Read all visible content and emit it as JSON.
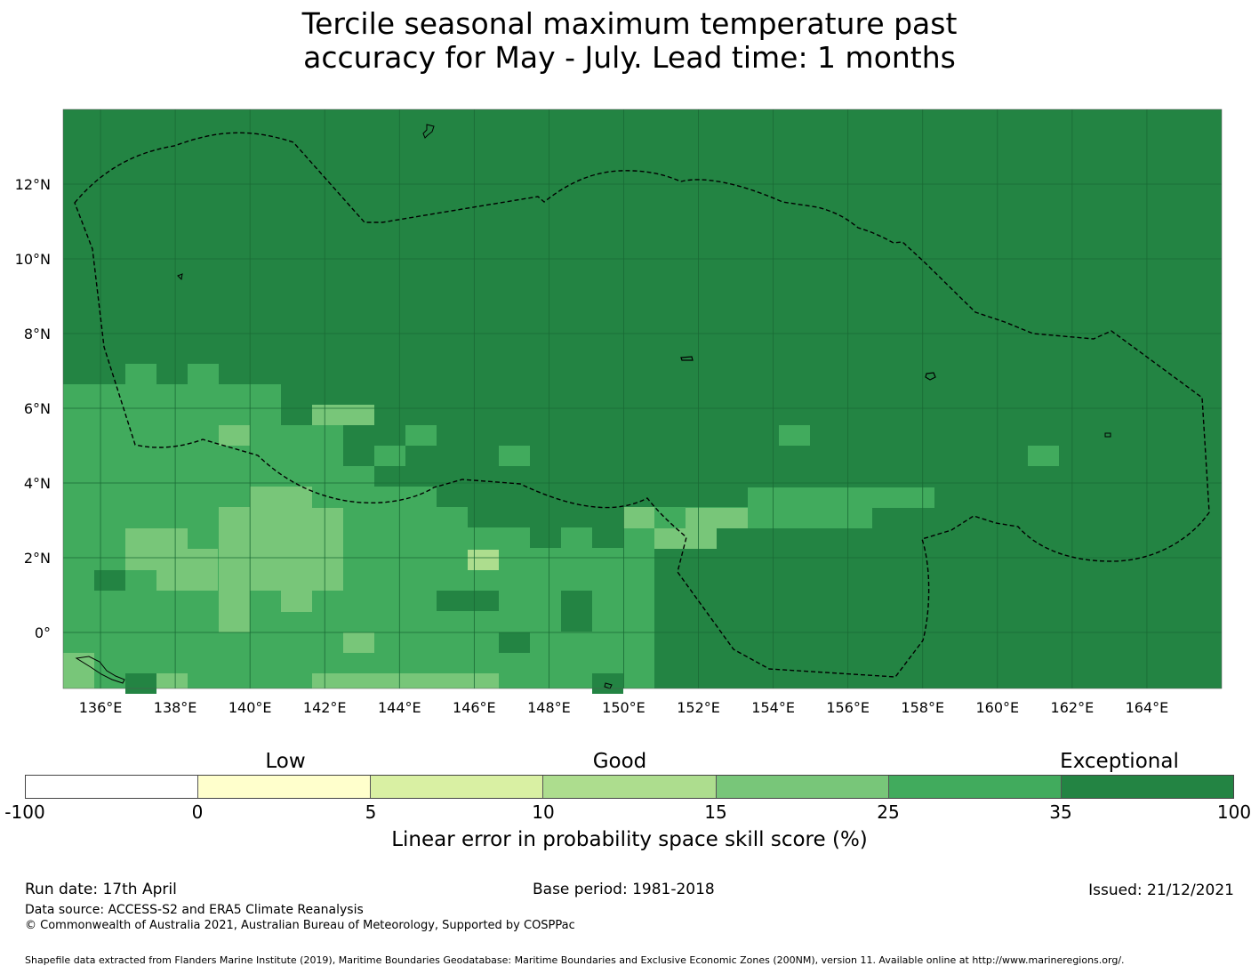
{
  "title": {
    "line1": "Tercile seasonal maximum temperature past",
    "line2": "accuracy for May - July. Lead time: 1 months"
  },
  "map": {
    "lon_ticks": [
      "136°E",
      "138°E",
      "140°E",
      "142°E",
      "144°E",
      "146°E",
      "148°E",
      "150°E",
      "152°E",
      "154°E",
      "156°E",
      "158°E",
      "160°E",
      "162°E",
      "164°E"
    ],
    "lat_ticks": [
      "12°N",
      "10°N",
      "8°N",
      "6°N",
      "4°N",
      "2°N",
      "0°"
    ],
    "colors": {
      "exceptional": "#238443",
      "c25_35": "#41ab5d",
      "c15_25": "#78c679",
      "c10_15": "#addd8e",
      "c5_10": "#d9f0a3",
      "c0_5": "#ffffcc",
      "neg": "#ffffff"
    }
  },
  "legend": {
    "categories": [
      "Low",
      "Good",
      "Exceptional"
    ],
    "ticks": [
      "-100",
      "0",
      "5",
      "10",
      "15",
      "25",
      "35",
      "100"
    ],
    "colors": [
      "#ffffff",
      "#ffffcc",
      "#d9f0a3",
      "#addd8e",
      "#78c679",
      "#41ab5d",
      "#238443"
    ],
    "label": "Linear error in probability space skill score (%)"
  },
  "footer": {
    "run_date": "Run date: 17th April",
    "base_period": "Base period: 1981-2018",
    "issued": "Issued: 21/12/2021",
    "data_source": "Data source: ACCESS-S2 and ERA5 Climate Reanalysis",
    "copyright": "© Commonwealth of Australia 2021, Australian Bureau of Meteorology, Supported by COSPPac",
    "shapefile": "Shapefile data extracted from Flanders Marine Institute (2019), Maritime Boundaries Geodatabase: Maritime Boundaries and Exclusive Economic Zones (200NM), version 11. Available online at http://www.marineregions.org/."
  }
}
